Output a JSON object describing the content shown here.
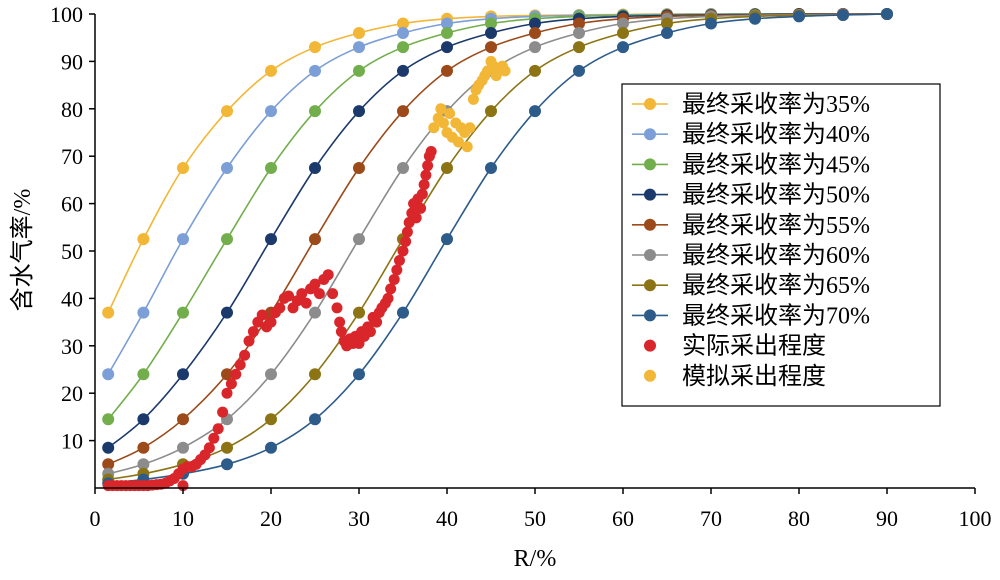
{
  "chart_data": {
    "type": "scatter",
    "xlabel": "R/%",
    "ylabel": "含水气率/%",
    "xlim": [
      0,
      100
    ],
    "ylim": [
      0,
      100
    ],
    "x_ticks": [
      0,
      10,
      20,
      30,
      40,
      50,
      60,
      70,
      80,
      90,
      100
    ],
    "y_ticks": [
      10,
      20,
      30,
      40,
      50,
      60,
      70,
      80,
      90,
      100
    ],
    "grid": false,
    "legend_position": "right",
    "x": [
      1.5,
      5.5,
      10,
      15,
      20,
      25,
      30,
      35,
      40,
      45,
      50,
      55,
      60,
      65,
      70,
      75,
      80,
      85,
      90
    ],
    "series": [
      {
        "name": "最终采收率为35%",
        "color": "#F2B736",
        "style": "line-markers",
        "values": [
          37.0,
          52.5,
          67.5,
          79.5,
          88.0,
          93.0,
          96.0,
          98.0,
          99.0,
          99.5,
          99.7,
          99.8,
          99.9,
          100,
          100,
          100,
          100,
          100,
          100
        ]
      },
      {
        "name": "最终采收率为40%",
        "color": "#7B9FD6",
        "style": "line-markers",
        "values": [
          24.0,
          37.0,
          52.5,
          67.5,
          79.5,
          88.0,
          93.0,
          96.0,
          98.0,
          99.0,
          99.5,
          99.7,
          99.8,
          99.9,
          100,
          100,
          100,
          100,
          100
        ]
      },
      {
        "name": "最终采收率为45%",
        "color": "#72AE4C",
        "style": "line-markers",
        "values": [
          14.5,
          24.0,
          37.0,
          52.5,
          67.5,
          79.5,
          88.0,
          93.0,
          96.0,
          98.0,
          99.0,
          99.5,
          99.7,
          99.8,
          99.9,
          100,
          100,
          100,
          100
        ]
      },
      {
        "name": "最终采收率为50%",
        "color": "#1B3A6B",
        "style": "line-markers",
        "values": [
          8.5,
          14.5,
          24.0,
          37.0,
          52.5,
          67.5,
          79.5,
          88.0,
          93.0,
          96.0,
          98.0,
          99.0,
          99.5,
          99.7,
          99.8,
          99.9,
          100,
          100,
          100
        ]
      },
      {
        "name": "最终采收率为55%",
        "color": "#9C4A1A",
        "style": "line-markers",
        "values": [
          5.0,
          8.5,
          14.5,
          24.0,
          37.0,
          52.5,
          67.5,
          79.5,
          88.0,
          93.0,
          96.0,
          98.0,
          99.0,
          99.5,
          99.7,
          99.8,
          99.9,
          100,
          100
        ]
      },
      {
        "name": "最终采收率为60%",
        "color": "#8C8C8C",
        "style": "line-markers",
        "values": [
          3.0,
          5.0,
          8.5,
          14.5,
          24.0,
          37.0,
          52.5,
          67.5,
          79.5,
          88.0,
          93.0,
          96.0,
          98.0,
          99.0,
          99.5,
          99.7,
          99.8,
          99.9,
          100
        ]
      },
      {
        "name": "最终采收率为65%",
        "color": "#8C7414",
        "style": "line-markers",
        "values": [
          1.8,
          3.0,
          5.0,
          8.5,
          14.5,
          24.0,
          37.0,
          52.5,
          67.5,
          79.5,
          88.0,
          93.0,
          96.0,
          98.0,
          99.0,
          99.5,
          99.7,
          99.8,
          100
        ]
      },
      {
        "name": "最终采收率为70%",
        "color": "#2E5C8A",
        "style": "line-markers",
        "values": [
          1.0,
          1.8,
          3.0,
          5.0,
          8.5,
          14.5,
          24.0,
          37.0,
          52.5,
          67.5,
          79.5,
          88.0,
          93.0,
          96.0,
          98.0,
          99.0,
          99.5,
          99.8,
          100
        ]
      }
    ],
    "scatter_series": [
      {
        "name": "实际采出程度",
        "color": "#D9262B",
        "points": [
          [
            1.5,
            0.5
          ],
          [
            2,
            0.5
          ],
          [
            2.5,
            0.5
          ],
          [
            3,
            0.5
          ],
          [
            3.5,
            0.5
          ],
          [
            4,
            0.5
          ],
          [
            4.5,
            0.5
          ],
          [
            5,
            0.5
          ],
          [
            5.5,
            0.5
          ],
          [
            6,
            0.5
          ],
          [
            6.5,
            0.6
          ],
          [
            7,
            0.7
          ],
          [
            7.5,
            0.8
          ],
          [
            8,
            1.0
          ],
          [
            8.5,
            1.5
          ],
          [
            9,
            2.0
          ],
          [
            9.5,
            3.0
          ],
          [
            10,
            4.0
          ],
          [
            10,
            0.5
          ],
          [
            10.5,
            4.5
          ],
          [
            11,
            4.5
          ],
          [
            11.5,
            5.0
          ],
          [
            12,
            6.0
          ],
          [
            12.5,
            7.0
          ],
          [
            13,
            8.5
          ],
          [
            13.5,
            10.5
          ],
          [
            14,
            12.5
          ],
          [
            14.5,
            16.0
          ],
          [
            15,
            20.0
          ],
          [
            15.5,
            22.0
          ],
          [
            16,
            24.0
          ],
          [
            16.5,
            26.0
          ],
          [
            17,
            28.0
          ],
          [
            17.5,
            31.0
          ],
          [
            18,
            33.0
          ],
          [
            18.5,
            35.0
          ],
          [
            19,
            36.5
          ],
          [
            19.5,
            34.0
          ],
          [
            20,
            35.0
          ],
          [
            20.5,
            37.0
          ],
          [
            21,
            38.0
          ],
          [
            21.5,
            40.0
          ],
          [
            22,
            40.5
          ],
          [
            22.5,
            38.0
          ],
          [
            23,
            39.5
          ],
          [
            23.5,
            41.0
          ],
          [
            24,
            39.0
          ],
          [
            24.5,
            42.0
          ],
          [
            25,
            43.0
          ],
          [
            25.5,
            41.0
          ],
          [
            26,
            44.0
          ],
          [
            26.5,
            45.0
          ],
          [
            27,
            41.0
          ],
          [
            27.5,
            38.0
          ],
          [
            27.8,
            35.0
          ],
          [
            28,
            33.0
          ],
          [
            28.3,
            31.0
          ],
          [
            28.6,
            30.0
          ],
          [
            29,
            31.5
          ],
          [
            29.3,
            30.5
          ],
          [
            29.6,
            32.0
          ],
          [
            30,
            30.5
          ],
          [
            30.3,
            33.0
          ],
          [
            30.6,
            32.0
          ],
          [
            31,
            34.0
          ],
          [
            31.3,
            33.0
          ],
          [
            31.6,
            36.0
          ],
          [
            32,
            35.0
          ],
          [
            32.3,
            37.0
          ],
          [
            32.6,
            38.0
          ],
          [
            33,
            39.0
          ],
          [
            33.3,
            40.0
          ],
          [
            33.6,
            42.0
          ],
          [
            34,
            44.0
          ],
          [
            34.3,
            46.0
          ],
          [
            34.6,
            48.0
          ],
          [
            35,
            50.0
          ],
          [
            35.3,
            52.0
          ],
          [
            35.5,
            54.0
          ],
          [
            35.7,
            56.0
          ],
          [
            36,
            58.0
          ],
          [
            36.2,
            60.0
          ],
          [
            36.5,
            57.0
          ],
          [
            36.7,
            61.0
          ],
          [
            37,
            59.0
          ],
          [
            37.2,
            62.0
          ],
          [
            37.4,
            64.0
          ],
          [
            37.6,
            66.0
          ],
          [
            37.8,
            68.0
          ],
          [
            38,
            70.0
          ],
          [
            38.2,
            71.0
          ]
        ]
      },
      {
        "name": "模拟采出程度",
        "color": "#F2B736",
        "points": [
          [
            38.5,
            76.0
          ],
          [
            39,
            78.0
          ],
          [
            39.3,
            80.0
          ],
          [
            39.6,
            77.0
          ],
          [
            40,
            75.0
          ],
          [
            40.3,
            79.0
          ],
          [
            40.6,
            74.0
          ],
          [
            41,
            77.0
          ],
          [
            41.3,
            73.0
          ],
          [
            41.6,
            76.0
          ],
          [
            42,
            75.0
          ],
          [
            42.3,
            72.0
          ],
          [
            42.6,
            76.0
          ],
          [
            43,
            82.0
          ],
          [
            43.3,
            84.0
          ],
          [
            43.6,
            85.0
          ],
          [
            44,
            86.0
          ],
          [
            44.3,
            87.0
          ],
          [
            44.6,
            88.0
          ],
          [
            45,
            90.0
          ],
          [
            45.3,
            89.0
          ],
          [
            45.6,
            87.0
          ],
          [
            46,
            88.5
          ],
          [
            46.3,
            89.0
          ],
          [
            46.6,
            88.0
          ]
        ]
      }
    ]
  }
}
